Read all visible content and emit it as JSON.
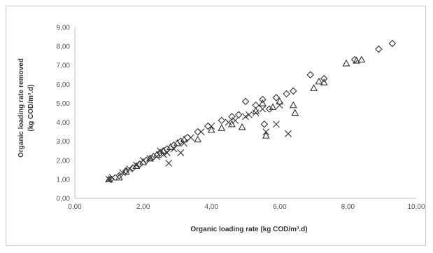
{
  "chart_data": {
    "type": "scatter",
    "title": "",
    "xlabel": "Organic loading rate (kg COD/m³.d)",
    "ylabel_line1": "Organic loading rate removed",
    "ylabel_line2": "(kg COD/m³.d)",
    "xlim": [
      0,
      10
    ],
    "ylim": [
      0,
      9
    ],
    "x_ticks": [
      "0,00",
      "2,00",
      "4,00",
      "6,00",
      "8,00",
      "10,00"
    ],
    "y_ticks": [
      "0,00",
      "1,00",
      "2,00",
      "3,00",
      "4,00",
      "5,00",
      "6,00",
      "7,00",
      "8,00",
      "9,00"
    ],
    "grid": false,
    "legend": "none",
    "series": [
      {
        "marker": "diamond",
        "points": [
          [
            1.05,
            1.0
          ],
          [
            1.3,
            1.2
          ],
          [
            1.5,
            1.45
          ],
          [
            1.7,
            1.6
          ],
          [
            1.9,
            1.8
          ],
          [
            2.1,
            2.0
          ],
          [
            2.3,
            2.2
          ],
          [
            2.5,
            2.4
          ],
          [
            2.7,
            2.6
          ],
          [
            2.9,
            2.8
          ],
          [
            3.1,
            3.0
          ],
          [
            3.3,
            3.2
          ],
          [
            3.6,
            3.5
          ],
          [
            3.9,
            3.8
          ],
          [
            4.3,
            4.1
          ],
          [
            4.6,
            4.3
          ],
          [
            4.8,
            4.4
          ],
          [
            5.0,
            5.1
          ],
          [
            5.3,
            4.9
          ],
          [
            5.5,
            5.2
          ],
          [
            5.55,
            3.9
          ],
          [
            5.7,
            4.7
          ],
          [
            5.9,
            5.3
          ],
          [
            6.2,
            5.5
          ],
          [
            6.4,
            5.65
          ],
          [
            6.9,
            6.5
          ],
          [
            7.3,
            6.3
          ],
          [
            8.2,
            7.3
          ],
          [
            8.9,
            7.85
          ],
          [
            9.3,
            8.15
          ]
        ]
      },
      {
        "marker": "triangle",
        "points": [
          [
            1.0,
            1.0
          ],
          [
            1.3,
            1.1
          ],
          [
            1.5,
            1.4
          ],
          [
            1.8,
            1.7
          ],
          [
            2.0,
            1.9
          ],
          [
            2.2,
            2.1
          ],
          [
            2.4,
            2.3
          ],
          [
            2.6,
            2.5
          ],
          [
            2.8,
            2.7
          ],
          [
            3.0,
            2.9
          ],
          [
            3.2,
            3.1
          ],
          [
            3.6,
            3.1
          ],
          [
            4.0,
            3.6
          ],
          [
            4.3,
            3.7
          ],
          [
            4.6,
            3.9
          ],
          [
            4.9,
            3.75
          ],
          [
            5.3,
            4.6
          ],
          [
            5.5,
            5.0
          ],
          [
            5.6,
            3.3
          ],
          [
            5.8,
            4.8
          ],
          [
            6.0,
            5.1
          ],
          [
            6.4,
            4.9
          ],
          [
            6.45,
            4.5
          ],
          [
            7.0,
            5.8
          ],
          [
            7.15,
            6.15
          ],
          [
            7.3,
            6.1
          ],
          [
            7.95,
            7.1
          ],
          [
            8.25,
            7.25
          ],
          [
            8.4,
            7.3
          ]
        ]
      },
      {
        "marker": "x",
        "points": [
          [
            1.0,
            1.0
          ],
          [
            1.1,
            1.1
          ],
          [
            1.4,
            1.35
          ],
          [
            1.6,
            1.55
          ],
          [
            1.8,
            1.75
          ],
          [
            2.0,
            2.0
          ],
          [
            2.2,
            2.1
          ],
          [
            2.4,
            2.2
          ],
          [
            2.5,
            2.5
          ],
          [
            2.6,
            2.3
          ],
          [
            2.7,
            2.4
          ],
          [
            2.75,
            1.85
          ],
          [
            2.9,
            2.6
          ],
          [
            3.1,
            2.4
          ],
          [
            3.2,
            2.9
          ],
          [
            3.4,
            3.2
          ],
          [
            3.7,
            3.5
          ],
          [
            4.0,
            3.8
          ],
          [
            4.5,
            4.0
          ],
          [
            4.7,
            4.1
          ],
          [
            5.0,
            4.3
          ],
          [
            5.1,
            4.4
          ],
          [
            5.3,
            4.5
          ],
          [
            5.5,
            4.7
          ],
          [
            5.6,
            3.5
          ],
          [
            5.9,
            3.9
          ],
          [
            6.0,
            4.9
          ],
          [
            6.25,
            3.4
          ]
        ]
      }
    ]
  }
}
